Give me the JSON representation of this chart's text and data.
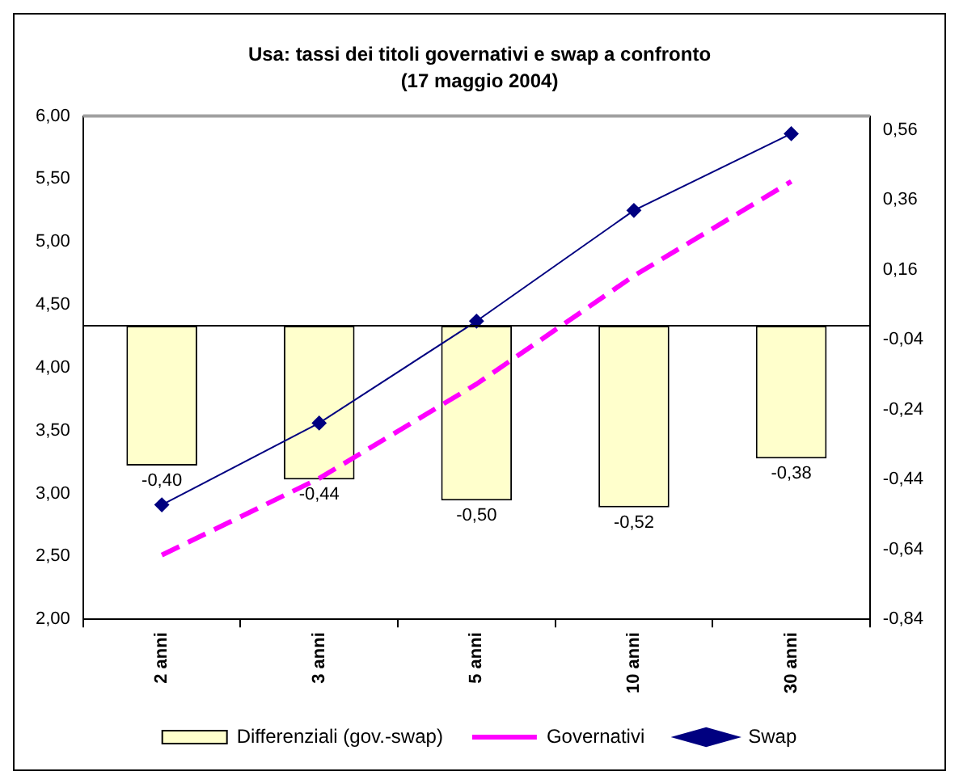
{
  "chart_data": {
    "type": "bar",
    "title": "Usa: tassi dei titoli governativi e swap a confronto",
    "subtitle": "(17 maggio 2004)",
    "categories": [
      "2 anni",
      "3 anni",
      "5 anni",
      "10 anni",
      "30 anni"
    ],
    "series": [
      {
        "name": "Differenziali (gov.-swap)",
        "type": "bar",
        "axis": "y2",
        "color": "#ffffcc",
        "values": [
          -0.4,
          -0.44,
          -0.5,
          -0.52,
          -0.38
        ],
        "value_labels": [
          "-0,40",
          "-0,44",
          "-0,50",
          "-0,52",
          "-0,38"
        ]
      },
      {
        "name": "Governativi",
        "type": "line",
        "color": "#ff00ff",
        "line_style": "dashed",
        "marker": "none",
        "values": [
          2.51,
          3.12,
          3.87,
          4.73,
          5.48
        ]
      },
      {
        "name": "Swap",
        "type": "line",
        "color": "#000080",
        "line_style": "solid",
        "marker": "diamond",
        "values": [
          2.91,
          3.56,
          4.37,
          5.25,
          5.86
        ]
      }
    ],
    "ylim": [
      2,
      6
    ],
    "yticks": [
      {
        "value": 2,
        "label": "2,00"
      },
      {
        "value": 2.5,
        "label": "2,50"
      },
      {
        "value": 3,
        "label": "3,00"
      },
      {
        "value": 3.5,
        "label": "3,50"
      },
      {
        "value": 4,
        "label": "4,00"
      },
      {
        "value": 4.5,
        "label": "4,50"
      },
      {
        "value": 5,
        "label": "5,00"
      },
      {
        "value": 5.5,
        "label": "5,50"
      },
      {
        "value": 6,
        "label": "6,00"
      }
    ],
    "y2lim": [
      -0.84,
      0.6
    ],
    "y2ticks": [
      {
        "value": -0.84,
        "label": "-0,84"
      },
      {
        "value": -0.64,
        "label": "-0,64"
      },
      {
        "value": -0.44,
        "label": "-0,44"
      },
      {
        "value": -0.24,
        "label": "-0,24"
      },
      {
        "value": -0.04,
        "label": "-0,04"
      },
      {
        "value": 0.16,
        "label": "0,16"
      },
      {
        "value": 0.36,
        "label": "0,36"
      },
      {
        "value": 0.56,
        "label": "0,56"
      }
    ],
    "grid": false,
    "legend": "bottom"
  }
}
